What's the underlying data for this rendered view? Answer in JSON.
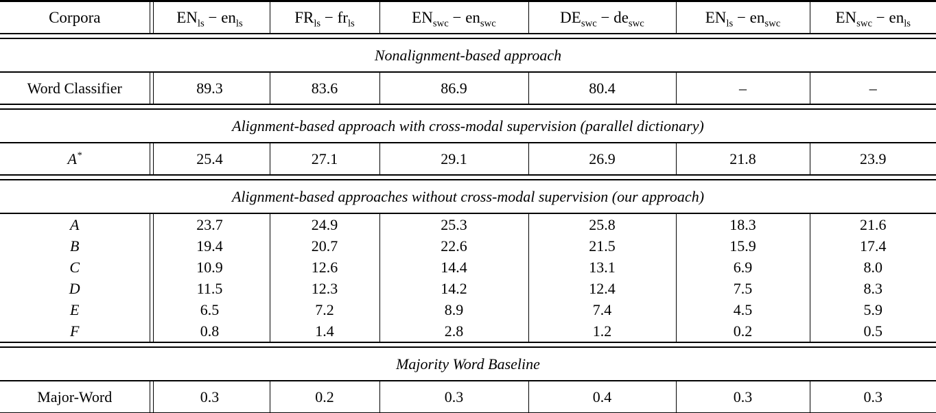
{
  "page": {
    "background": "#ffffff",
    "text_color": "#000000",
    "rule_color": "#000000"
  },
  "table": {
    "columns": [
      {
        "label": "Corpora"
      },
      {
        "label": "EN_{ls} − en_{ls}"
      },
      {
        "label": "FR_{ls} − fr_{ls}"
      },
      {
        "label": "EN_{swc} − en_{swc}"
      },
      {
        "label": "DE_{swc} − de_{swc}"
      },
      {
        "label": "EN_{ls} − en_{swc}"
      },
      {
        "label": "EN_{swc} − en_{ls}"
      }
    ],
    "sections": [
      {
        "title": "Nonalignment-based approach",
        "rows": [
          {
            "label": "Word Classifier",
            "italic_label": false,
            "values": [
              "89.3",
              "83.6",
              "86.9",
              "80.4",
              "–",
              "–"
            ]
          }
        ]
      },
      {
        "title": "Alignment-based approach with cross-modal supervision (parallel dictionary)",
        "rows": [
          {
            "label": "A^{*}",
            "italic_label": true,
            "values": [
              "25.4",
              "27.1",
              "29.1",
              "26.9",
              "21.8",
              "23.9"
            ]
          }
        ]
      },
      {
        "title": "Alignment-based approaches without cross-modal supervision (our approach)",
        "rows": [
          {
            "label": "A",
            "italic_label": true,
            "values": [
              "23.7",
              "24.9",
              "25.3",
              "25.8",
              "18.3",
              "21.6"
            ]
          },
          {
            "label": "B",
            "italic_label": true,
            "values": [
              "19.4",
              "20.7",
              "22.6",
              "21.5",
              "15.9",
              "17.4"
            ]
          },
          {
            "label": "C",
            "italic_label": true,
            "values": [
              "10.9",
              "12.6",
              "14.4",
              "13.1",
              "6.9",
              "8.0"
            ]
          },
          {
            "label": "D",
            "italic_label": true,
            "values": [
              "11.5",
              "12.3",
              "14.2",
              "12.4",
              "7.5",
              "8.3"
            ]
          },
          {
            "label": "E",
            "italic_label": true,
            "values": [
              "6.5",
              "7.2",
              "8.9",
              "7.4",
              "4.5",
              "5.9"
            ]
          },
          {
            "label": "F",
            "italic_label": true,
            "values": [
              "0.8",
              "1.4",
              "2.8",
              "1.2",
              "0.2",
              "0.5"
            ]
          }
        ]
      },
      {
        "title": "Majority Word Baseline",
        "rows": [
          {
            "label": "Major-Word",
            "italic_label": false,
            "values": [
              "0.3",
              "0.2",
              "0.3",
              "0.4",
              "0.3",
              "0.3"
            ]
          }
        ]
      }
    ]
  }
}
